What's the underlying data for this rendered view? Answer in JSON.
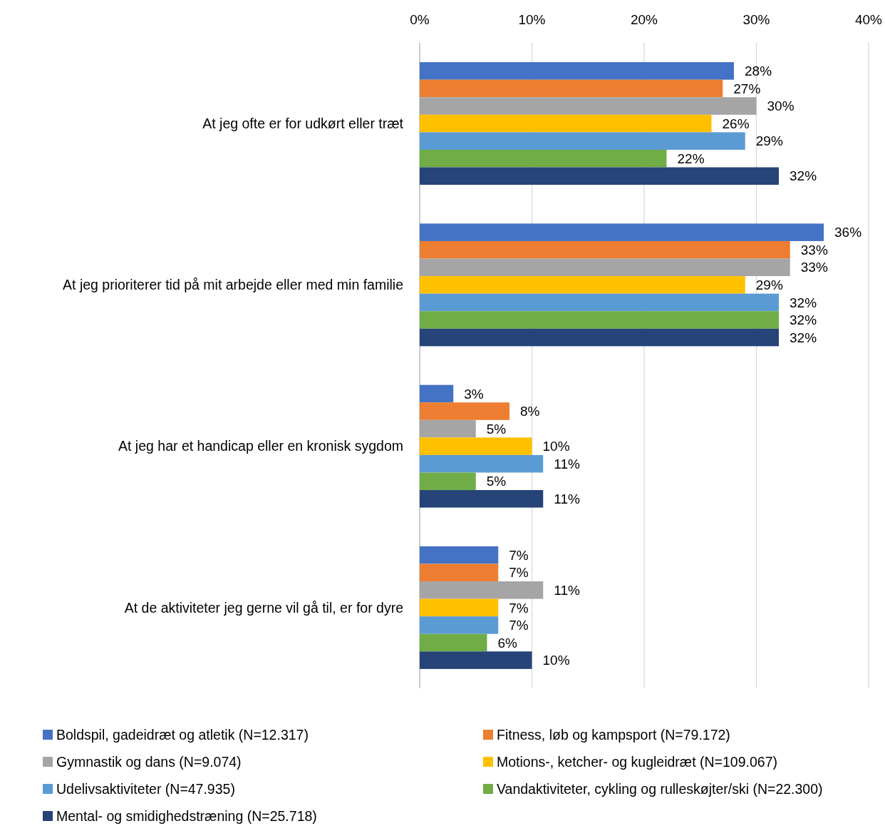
{
  "chart_data": {
    "type": "bar",
    "orientation": "horizontal",
    "categories": [
      "At jeg ofte er for udkørt eller træt",
      "At jeg prioriterer tid på mit arbejde eller med min familie",
      "At jeg har et handicap eller en kronisk sygdom",
      "At de aktiviteter jeg gerne vil gå til, er for dyre"
    ],
    "xlim": [
      0,
      40
    ],
    "xticks": [
      {
        "value": 0,
        "label": "0%"
      },
      {
        "value": 10,
        "label": "10%"
      },
      {
        "value": 20,
        "label": "20%"
      },
      {
        "value": 30,
        "label": "30%"
      },
      {
        "value": 40,
        "label": "40%"
      }
    ],
    "grid": "x",
    "legend": "bottom",
    "series": [
      {
        "name": "Boldspil, gadeidræt og atletik (N=12.317)",
        "color": "#4472c4",
        "values": [
          28,
          36,
          3,
          7
        ],
        "value_labels": [
          "28%",
          "36%",
          "3%",
          "7%"
        ]
      },
      {
        "name": "Fitness, løb og kampsport (N=79.172)",
        "color": "#ed7d31",
        "values": [
          27,
          33,
          8,
          7
        ],
        "value_labels": [
          "27%",
          "33%",
          "8%",
          "7%"
        ]
      },
      {
        "name": "Gymnastik og dans (N=9.074)",
        "color": "#a5a5a5",
        "values": [
          30,
          33,
          5,
          11
        ],
        "value_labels": [
          "30%",
          "33%",
          "5%",
          "11%"
        ]
      },
      {
        "name": "Motions-, ketcher- og kugleidræt (N=109.067)",
        "color": "#ffc000",
        "values": [
          26,
          29,
          10,
          7
        ],
        "value_labels": [
          "26%",
          "29%",
          "10%",
          "7%"
        ]
      },
      {
        "name": "Udelivsaktiviteter (N=47.935)",
        "color": "#5b9bd5",
        "values": [
          29,
          32,
          11,
          7
        ],
        "value_labels": [
          "29%",
          "32%",
          "11%",
          "7%"
        ]
      },
      {
        "name": "Vandaktiviteter, cykling og rulleskøjter/ski (N=22.300)",
        "color": "#70ad47",
        "values": [
          22,
          32,
          5,
          6
        ],
        "value_labels": [
          "22%",
          "32%",
          "5%",
          "6%"
        ]
      },
      {
        "name": "Mental- og smidighedstræning (N=25.718)",
        "color": "#264478",
        "values": [
          32,
          32,
          11,
          10
        ],
        "value_labels": [
          "32%",
          "32%",
          "11%",
          "10%"
        ]
      }
    ]
  }
}
